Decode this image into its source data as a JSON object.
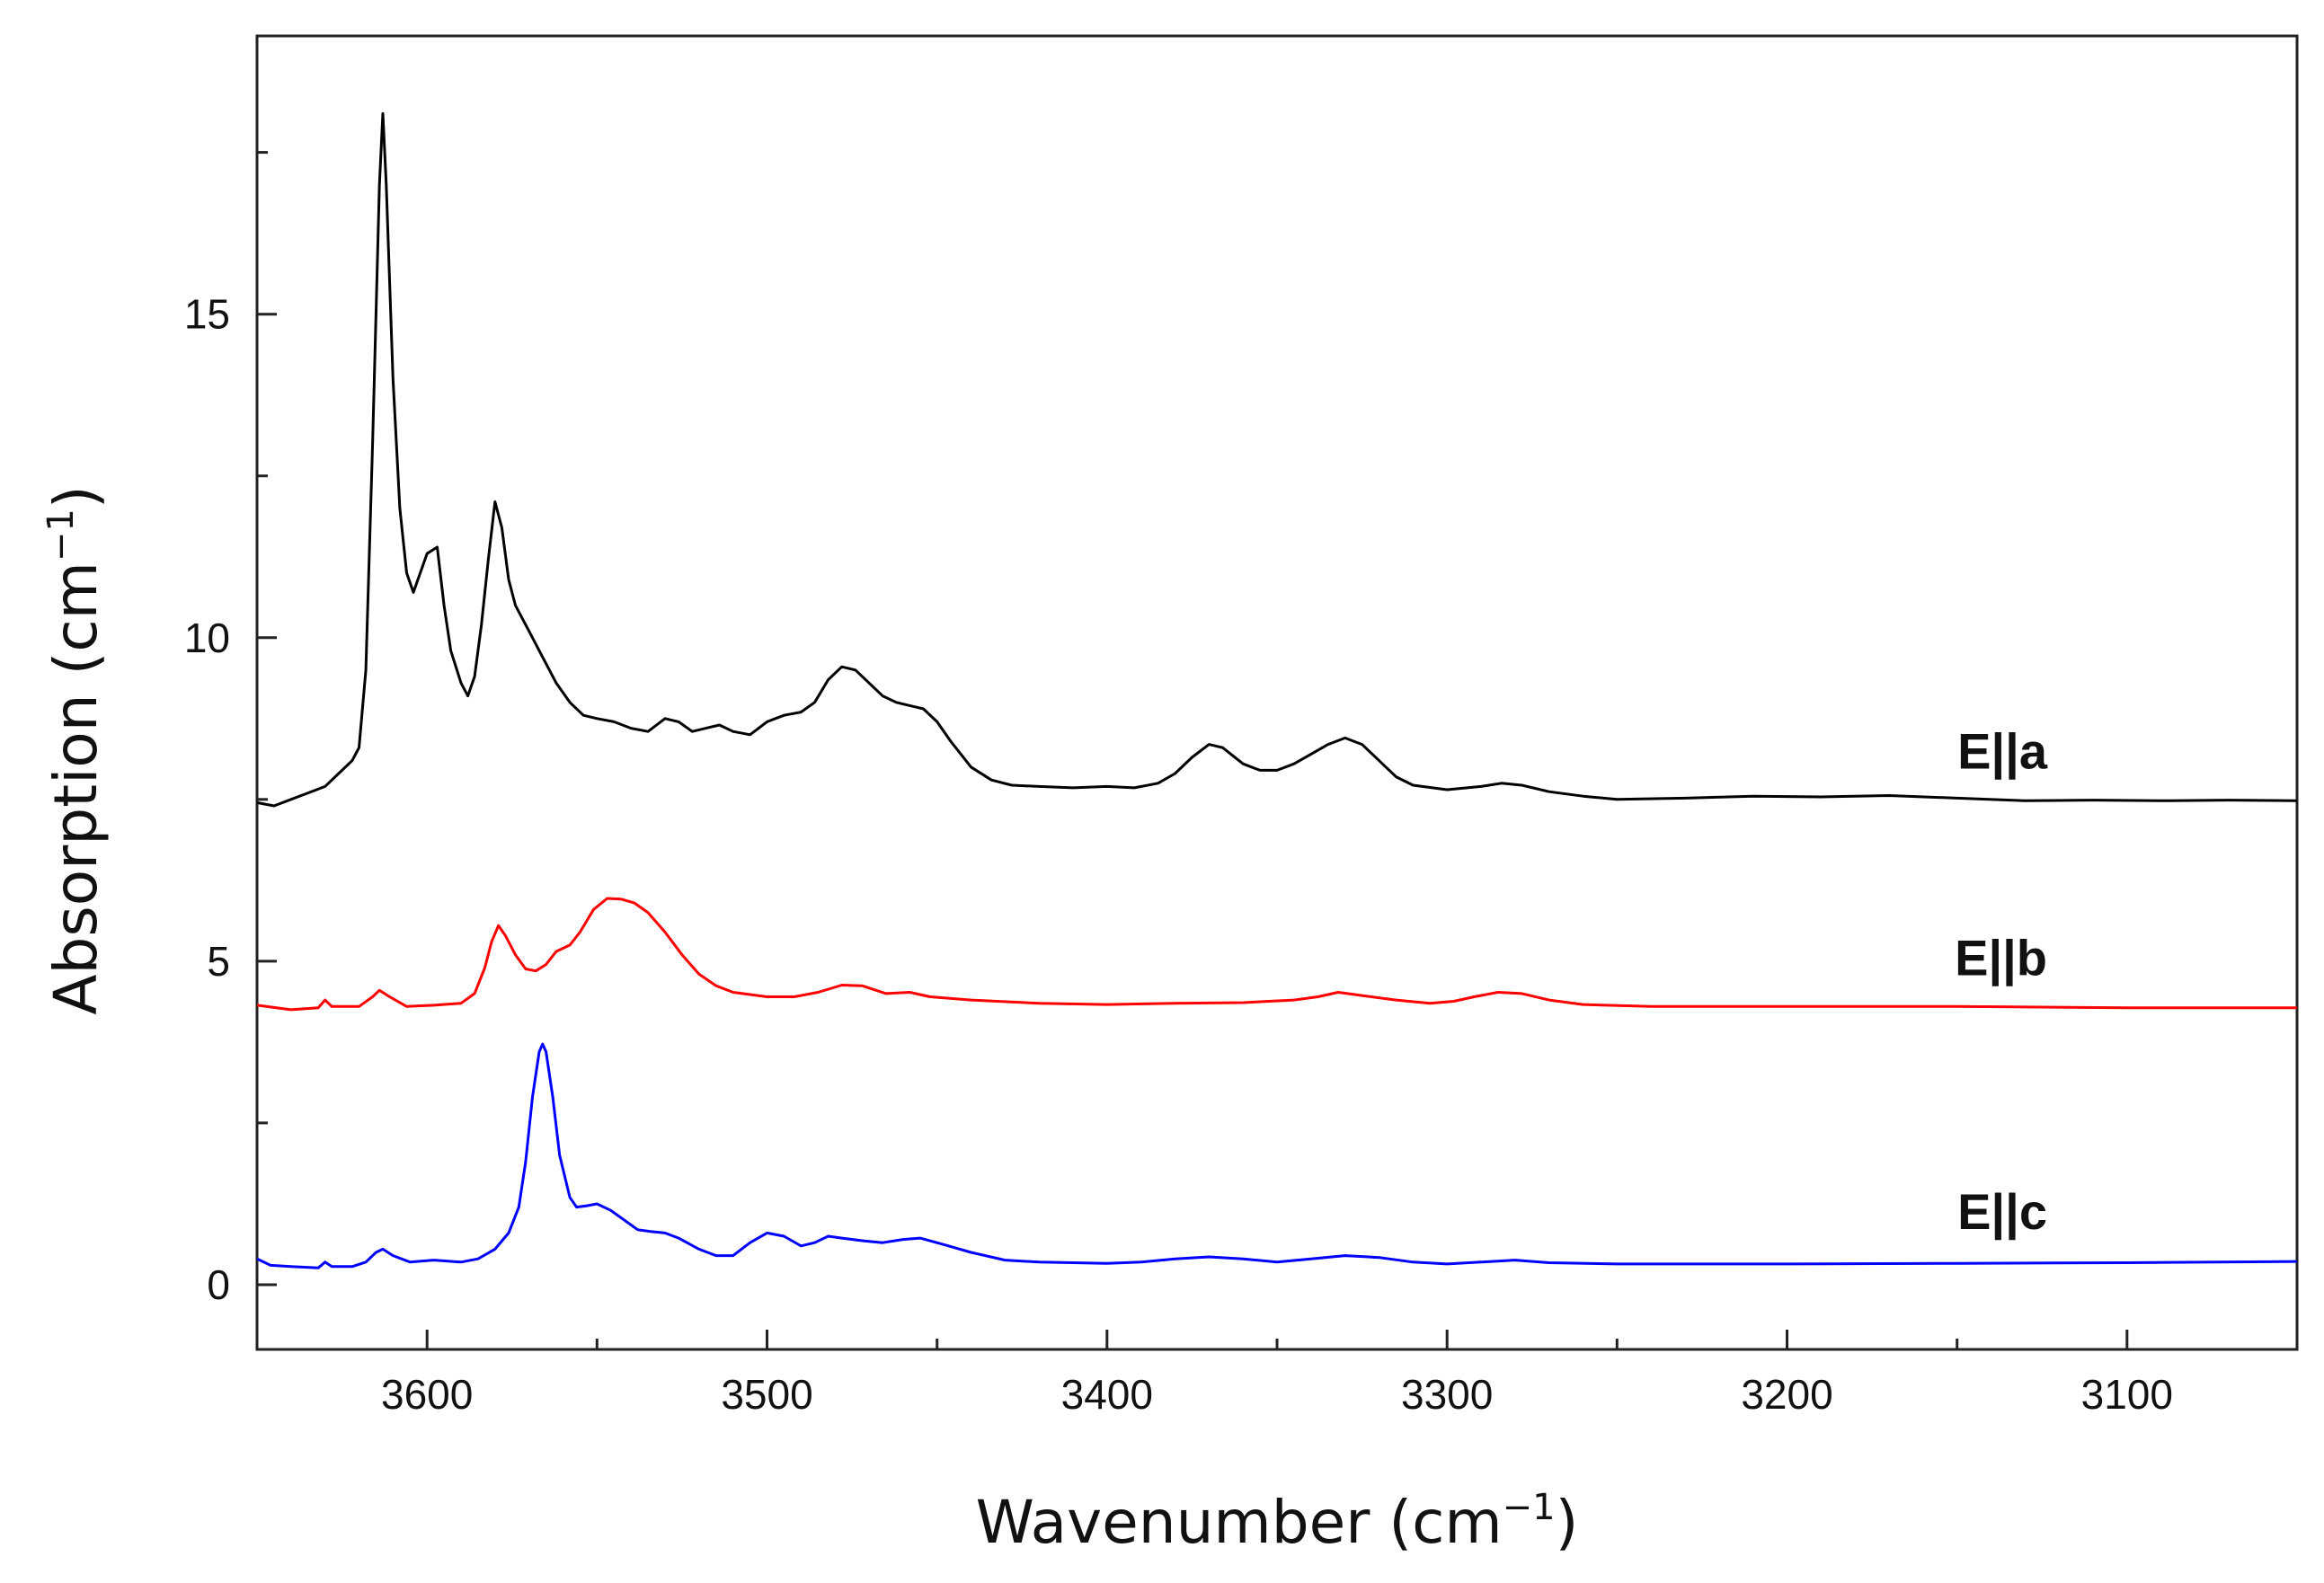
{
  "chart_data": {
    "type": "line",
    "xlabel": "Wavenumber (cm",
    "ylabel": "Absorption (cm",
    "unit_superscript": "−1",
    "unit_close": ")",
    "xlim": [
      3650,
      3050
    ],
    "ylim": [
      -1,
      19.3
    ],
    "xticks": [
      3600,
      3500,
      3400,
      3300,
      3200,
      3100
    ],
    "xtick_labels": [
      "3600",
      "3500",
      "3400",
      "3300",
      "3200",
      "3100"
    ],
    "yticks_major": [
      0,
      5,
      10,
      15
    ],
    "ytick_labels": [
      "0",
      "5",
      "10",
      "15"
    ],
    "yticks_minor": [
      2.5,
      7.5,
      12.5,
      17.5
    ],
    "xticks_minor": [
      3650,
      3550,
      3450,
      3350,
      3250,
      3150,
      3050
    ],
    "series": [
      {
        "name": "E||a",
        "label": "E||a",
        "color": "#000000",
        "points": [
          [
            3650,
            7.45
          ],
          [
            3645,
            7.4
          ],
          [
            3640,
            7.5
          ],
          [
            3635,
            7.6
          ],
          [
            3630,
            7.7
          ],
          [
            3626,
            7.9
          ],
          [
            3622,
            8.1
          ],
          [
            3620,
            8.3
          ],
          [
            3618,
            9.5
          ],
          [
            3616,
            13
          ],
          [
            3614,
            17
          ],
          [
            3613,
            18.1
          ],
          [
            3612,
            17
          ],
          [
            3610,
            14
          ],
          [
            3608,
            12
          ],
          [
            3606,
            11
          ],
          [
            3604,
            10.7
          ],
          [
            3602,
            11
          ],
          [
            3600,
            11.3
          ],
          [
            3597,
            11.4
          ],
          [
            3595,
            10.5
          ],
          [
            3593,
            9.8
          ],
          [
            3590,
            9.3
          ],
          [
            3588,
            9.1
          ],
          [
            3586,
            9.4
          ],
          [
            3584,
            10.2
          ],
          [
            3582,
            11.2
          ],
          [
            3580,
            12.1
          ],
          [
            3578,
            11.7
          ],
          [
            3576,
            10.9
          ],
          [
            3574,
            10.5
          ],
          [
            3570,
            10.1
          ],
          [
            3566,
            9.7
          ],
          [
            3562,
            9.3
          ],
          [
            3558,
            9.0
          ],
          [
            3554,
            8.8
          ],
          [
            3550,
            8.75
          ],
          [
            3545,
            8.7
          ],
          [
            3540,
            8.6
          ],
          [
            3535,
            8.55
          ],
          [
            3530,
            8.75
          ],
          [
            3526,
            8.7
          ],
          [
            3522,
            8.55
          ],
          [
            3518,
            8.6
          ],
          [
            3514,
            8.65
          ],
          [
            3510,
            8.55
          ],
          [
            3505,
            8.5
          ],
          [
            3500,
            8.7
          ],
          [
            3495,
            8.8
          ],
          [
            3490,
            8.85
          ],
          [
            3486,
            9.0
          ],
          [
            3482,
            9.35
          ],
          [
            3478,
            9.55
          ],
          [
            3474,
            9.5
          ],
          [
            3470,
            9.3
          ],
          [
            3466,
            9.1
          ],
          [
            3462,
            9.0
          ],
          [
            3458,
            8.95
          ],
          [
            3454,
            8.9
          ],
          [
            3450,
            8.7
          ],
          [
            3446,
            8.4
          ],
          [
            3440,
            8.0
          ],
          [
            3434,
            7.8
          ],
          [
            3428,
            7.72
          ],
          [
            3420,
            7.7
          ],
          [
            3410,
            7.68
          ],
          [
            3400,
            7.7
          ],
          [
            3392,
            7.68
          ],
          [
            3385,
            7.75
          ],
          [
            3380,
            7.9
          ],
          [
            3375,
            8.15
          ],
          [
            3370,
            8.35
          ],
          [
            3366,
            8.3
          ],
          [
            3360,
            8.05
          ],
          [
            3355,
            7.95
          ],
          [
            3350,
            7.95
          ],
          [
            3345,
            8.05
          ],
          [
            3340,
            8.2
          ],
          [
            3335,
            8.35
          ],
          [
            3330,
            8.45
          ],
          [
            3325,
            8.35
          ],
          [
            3320,
            8.1
          ],
          [
            3315,
            7.85
          ],
          [
            3310,
            7.72
          ],
          [
            3300,
            7.65
          ],
          [
            3290,
            7.7
          ],
          [
            3284,
            7.75
          ],
          [
            3278,
            7.72
          ],
          [
            3270,
            7.62
          ],
          [
            3260,
            7.55
          ],
          [
            3250,
            7.5
          ],
          [
            3230,
            7.52
          ],
          [
            3210,
            7.55
          ],
          [
            3190,
            7.54
          ],
          [
            3170,
            7.56
          ],
          [
            3150,
            7.52
          ],
          [
            3130,
            7.48
          ],
          [
            3110,
            7.49
          ],
          [
            3090,
            7.48
          ],
          [
            3070,
            7.49
          ],
          [
            3050,
            7.48
          ]
        ]
      },
      {
        "name": "E||b",
        "label": "E||b",
        "color": "#ff0000",
        "points": [
          [
            3650,
            4.32
          ],
          [
            3640,
            4.25
          ],
          [
            3632,
            4.28
          ],
          [
            3630,
            4.4
          ],
          [
            3628,
            4.3
          ],
          [
            3620,
            4.3
          ],
          [
            3616,
            4.45
          ],
          [
            3614,
            4.55
          ],
          [
            3611,
            4.45
          ],
          [
            3606,
            4.3
          ],
          [
            3598,
            4.32
          ],
          [
            3590,
            4.35
          ],
          [
            3586,
            4.5
          ],
          [
            3583,
            4.9
          ],
          [
            3581,
            5.3
          ],
          [
            3579,
            5.55
          ],
          [
            3577,
            5.4
          ],
          [
            3574,
            5.1
          ],
          [
            3571,
            4.88
          ],
          [
            3568,
            4.85
          ],
          [
            3565,
            4.95
          ],
          [
            3562,
            5.15
          ],
          [
            3558,
            5.25
          ],
          [
            3555,
            5.45
          ],
          [
            3551,
            5.8
          ],
          [
            3547,
            5.97
          ],
          [
            3543,
            5.96
          ],
          [
            3539,
            5.9
          ],
          [
            3535,
            5.75
          ],
          [
            3530,
            5.45
          ],
          [
            3525,
            5.1
          ],
          [
            3520,
            4.8
          ],
          [
            3515,
            4.62
          ],
          [
            3510,
            4.52
          ],
          [
            3500,
            4.45
          ],
          [
            3492,
            4.45
          ],
          [
            3485,
            4.52
          ],
          [
            3478,
            4.63
          ],
          [
            3472,
            4.62
          ],
          [
            3465,
            4.5
          ],
          [
            3458,
            4.52
          ],
          [
            3452,
            4.45
          ],
          [
            3440,
            4.4
          ],
          [
            3420,
            4.35
          ],
          [
            3400,
            4.33
          ],
          [
            3380,
            4.35
          ],
          [
            3360,
            4.36
          ],
          [
            3345,
            4.4
          ],
          [
            3338,
            4.45
          ],
          [
            3332,
            4.52
          ],
          [
            3325,
            4.47
          ],
          [
            3315,
            4.4
          ],
          [
            3305,
            4.35
          ],
          [
            3298,
            4.38
          ],
          [
            3292,
            4.45
          ],
          [
            3285,
            4.52
          ],
          [
            3278,
            4.5
          ],
          [
            3270,
            4.4
          ],
          [
            3260,
            4.33
          ],
          [
            3240,
            4.3
          ],
          [
            3200,
            4.3
          ],
          [
            3150,
            4.3
          ],
          [
            3100,
            4.28
          ],
          [
            3050,
            4.28
          ]
        ]
      },
      {
        "name": "E||c",
        "label": "E||c",
        "color": "#0000ff",
        "points": [
          [
            3650,
            0.4
          ],
          [
            3646,
            0.3
          ],
          [
            3640,
            0.28
          ],
          [
            3632,
            0.26
          ],
          [
            3630,
            0.35
          ],
          [
            3628,
            0.28
          ],
          [
            3622,
            0.28
          ],
          [
            3618,
            0.35
          ],
          [
            3615,
            0.5
          ],
          [
            3613,
            0.55
          ],
          [
            3610,
            0.45
          ],
          [
            3605,
            0.35
          ],
          [
            3598,
            0.38
          ],
          [
            3590,
            0.35
          ],
          [
            3585,
            0.4
          ],
          [
            3580,
            0.55
          ],
          [
            3576,
            0.8
          ],
          [
            3573,
            1.2
          ],
          [
            3571,
            1.9
          ],
          [
            3569,
            2.9
          ],
          [
            3567,
            3.6
          ],
          [
            3566,
            3.72
          ],
          [
            3565,
            3.6
          ],
          [
            3563,
            2.9
          ],
          [
            3561,
            2.0
          ],
          [
            3558,
            1.35
          ],
          [
            3556,
            1.2
          ],
          [
            3553,
            1.22
          ],
          [
            3550,
            1.25
          ],
          [
            3546,
            1.15
          ],
          [
            3542,
            1.0
          ],
          [
            3538,
            0.85
          ],
          [
            3534,
            0.82
          ],
          [
            3530,
            0.8
          ],
          [
            3526,
            0.72
          ],
          [
            3520,
            0.55
          ],
          [
            3515,
            0.45
          ],
          [
            3510,
            0.45
          ],
          [
            3505,
            0.65
          ],
          [
            3500,
            0.8
          ],
          [
            3495,
            0.75
          ],
          [
            3490,
            0.6
          ],
          [
            3486,
            0.65
          ],
          [
            3482,
            0.75
          ],
          [
            3478,
            0.72
          ],
          [
            3472,
            0.68
          ],
          [
            3466,
            0.65
          ],
          [
            3460,
            0.7
          ],
          [
            3455,
            0.72
          ],
          [
            3448,
            0.62
          ],
          [
            3440,
            0.5
          ],
          [
            3430,
            0.38
          ],
          [
            3420,
            0.35
          ],
          [
            3400,
            0.33
          ],
          [
            3390,
            0.35
          ],
          [
            3380,
            0.4
          ],
          [
            3370,
            0.43
          ],
          [
            3360,
            0.4
          ],
          [
            3350,
            0.35
          ],
          [
            3340,
            0.4
          ],
          [
            3330,
            0.45
          ],
          [
            3320,
            0.42
          ],
          [
            3310,
            0.35
          ],
          [
            3300,
            0.32
          ],
          [
            3290,
            0.35
          ],
          [
            3280,
            0.38
          ],
          [
            3270,
            0.34
          ],
          [
            3250,
            0.32
          ],
          [
            3200,
            0.32
          ],
          [
            3150,
            0.33
          ],
          [
            3100,
            0.34
          ],
          [
            3050,
            0.36
          ]
        ]
      }
    ]
  }
}
